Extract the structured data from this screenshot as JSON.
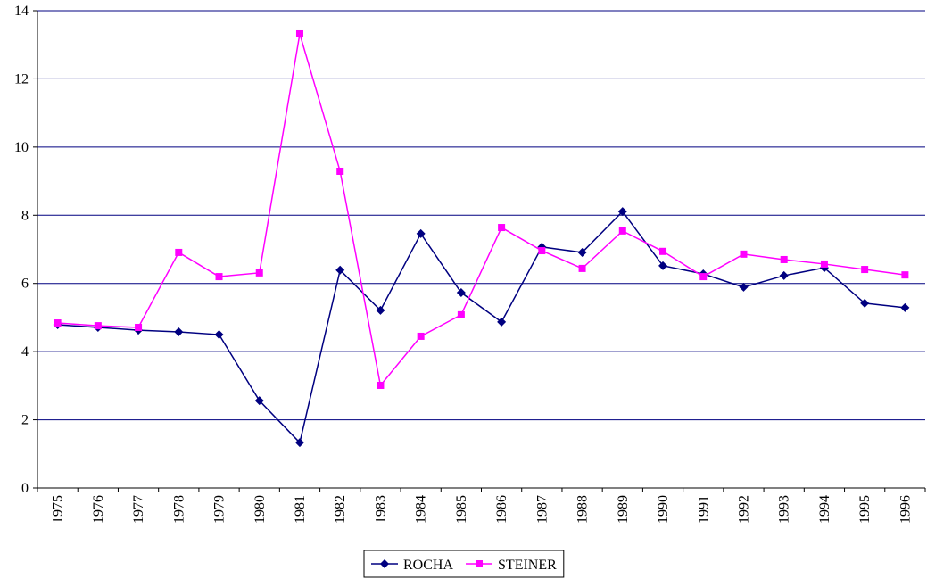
{
  "chart_data": {
    "type": "line",
    "categories": [
      "1975",
      "1976",
      "1977",
      "1978",
      "1979",
      "1980",
      "1981",
      "1982",
      "1983",
      "1984",
      "1985",
      "1986",
      "1987",
      "1988",
      "1989",
      "1990",
      "1991",
      "1992",
      "1993",
      "1994",
      "1995",
      "1996"
    ],
    "series": [
      {
        "name": "ROCHA",
        "color": "#000080",
        "marker": "diamond",
        "values": [
          4.79,
          4.71,
          4.63,
          4.58,
          4.5,
          2.56,
          1.33,
          6.39,
          5.21,
          7.46,
          5.73,
          4.87,
          7.07,
          6.91,
          8.11,
          6.52,
          6.28,
          5.89,
          6.23,
          6.46,
          5.42,
          5.29
        ]
      },
      {
        "name": "STEINER",
        "color": "#ff00ff",
        "marker": "square",
        "values": [
          4.84,
          4.76,
          4.71,
          6.91,
          6.2,
          6.31,
          13.32,
          9.29,
          3.01,
          4.45,
          5.08,
          7.64,
          6.96,
          6.44,
          7.54,
          6.94,
          6.2,
          6.86,
          6.7,
          6.57,
          6.41,
          6.25
        ]
      }
    ],
    "ylim": [
      0,
      14
    ],
    "yticks": [
      0,
      2,
      4,
      6,
      8,
      10,
      12,
      14
    ],
    "grid": true,
    "legend": "bottom"
  }
}
